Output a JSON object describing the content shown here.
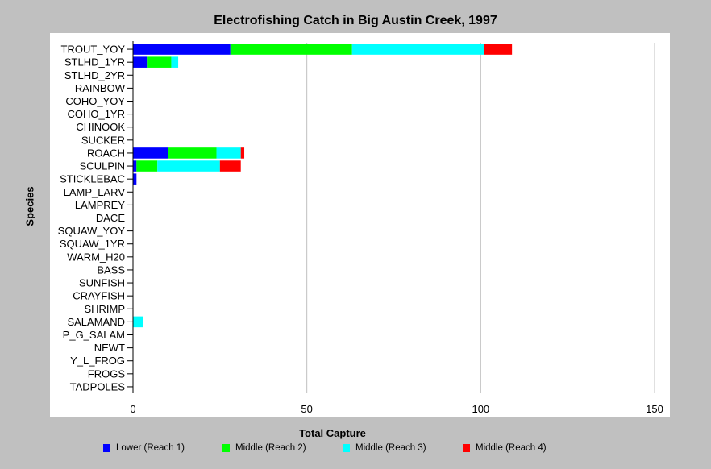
{
  "chart_data": {
    "type": "bar",
    "orientation": "horizontal",
    "stacked": true,
    "title": "Electrofishing Catch in Big Austin Creek, 1997",
    "xlabel": "Total Capture",
    "ylabel": "Species",
    "xlim": [
      0,
      150
    ],
    "xticks": [
      0,
      50,
      100,
      150
    ],
    "grid": "vertical",
    "legend_position": "bottom",
    "categories": [
      "TROUT_YOY",
      "STLHD_1YR",
      "STLHD_2YR",
      "RAINBOW",
      "COHO_YOY",
      "COHO_1YR",
      "CHINOOK",
      "SUCKER",
      "ROACH",
      "SCULPIN",
      "STICKLEBAC",
      "LAMP_LARV",
      "LAMPREY",
      "DACE",
      "SQUAW_YOY",
      "SQUAW_1YR",
      "WARM_H20",
      "BASS",
      "SUNFISH",
      "CRAYFISH",
      "SHRIMP",
      "SALAMAND",
      "P_G_SALAM",
      "NEWT",
      "Y_L_FROG",
      "FROGS",
      "TADPOLES"
    ],
    "series": [
      {
        "name": "Lower (Reach 1)",
        "color": "#0000ff",
        "values": [
          28,
          4,
          0,
          0,
          0,
          0,
          0,
          0,
          10,
          1,
          1,
          0,
          0,
          0,
          0,
          0,
          0,
          0,
          0,
          0,
          0,
          0,
          0,
          0,
          0,
          0,
          0
        ]
      },
      {
        "name": "Middle (Reach 2)",
        "color": "#00ff00",
        "values": [
          35,
          7,
          0,
          0,
          0,
          0,
          0,
          0,
          14,
          6,
          0,
          0,
          0,
          0,
          0,
          0,
          0,
          0,
          0,
          0,
          0,
          0,
          0,
          0,
          0,
          0,
          0
        ]
      },
      {
        "name": "Middle (Reach 3)",
        "color": "#00ffff",
        "values": [
          38,
          2,
          0,
          0,
          0,
          0,
          0,
          0,
          7,
          18,
          0,
          0,
          0,
          0,
          0,
          0,
          0,
          0,
          0,
          0,
          0,
          3,
          0,
          0,
          0,
          0,
          0
        ]
      },
      {
        "name": "Middle (Reach 4)",
        "color": "#ff0000",
        "values": [
          8,
          0,
          0,
          0,
          0,
          0,
          0,
          0,
          1,
          6,
          0,
          0,
          0,
          0,
          0,
          0,
          0,
          0,
          0,
          0,
          0,
          0,
          0,
          0,
          0,
          0,
          0
        ]
      }
    ]
  },
  "colors": {
    "background": "#c0c0c0",
    "plot_background": "#ffffff",
    "gridline": "#c0c0c0",
    "axis": "#000000"
  }
}
